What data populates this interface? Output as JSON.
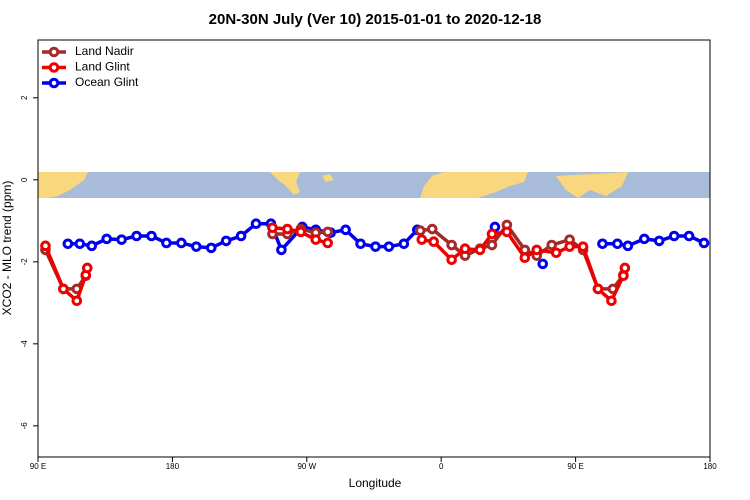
{
  "chart_data": {
    "type": "line",
    "title": "20N-30N July (Ver 10)   2015-01-01 to 2020-12-18",
    "x_label": "Longitude",
    "y_label": "XCO2 - MLO trend (ppm)",
    "xlim": [
      90,
      540
    ],
    "xticks": [
      {
        "value": 90,
        "label": "90 E"
      },
      {
        "value": 180,
        "label": "180"
      },
      {
        "value": 270,
        "label": "90 W"
      },
      {
        "value": 360,
        "label": "0"
      },
      {
        "value": 450,
        "label": "90 E"
      },
      {
        "value": 540,
        "label": "180"
      }
    ],
    "ylim": [
      -6.76,
      3.41
    ],
    "yticks": [
      -6,
      -4,
      -2,
      0,
      2
    ],
    "legend": "top-left",
    "series": [
      {
        "name": "Land Nadir",
        "color": "#a52a2a",
        "x": [
          95,
          107,
          116,
          122,
          200,
          247,
          257,
          266,
          276,
          284,
          320,
          346,
          354,
          367,
          376,
          386,
          394,
          404,
          416,
          424,
          434,
          446,
          455,
          465,
          475,
          482
        ],
        "values": [
          -1.71,
          -2.66,
          -2.66,
          -2.34,
          null,
          -1.32,
          -1.32,
          -1.2,
          -1.29,
          -1.27,
          null,
          -1.24,
          -1.2,
          -1.59,
          -1.85,
          -1.68,
          -1.59,
          -1.1,
          -1.71,
          -1.85,
          -1.59,
          -1.46,
          -1.71,
          -2.66,
          -2.66,
          -2.32
        ]
      },
      {
        "name": "Land Glint",
        "color": "#ee0000",
        "x": [
          95,
          107,
          116,
          122,
          123,
          200,
          247,
          257,
          266,
          276,
          284,
          320,
          347,
          355,
          367,
          376,
          386,
          394,
          404,
          416,
          424,
          437,
          446,
          455,
          465,
          474,
          482,
          483
        ],
        "values": [
          -1.61,
          -2.66,
          -2.95,
          -2.32,
          -2.15,
          null,
          -1.17,
          -1.2,
          -1.27,
          -1.46,
          -1.54,
          null,
          -1.46,
          -1.51,
          -1.95,
          -1.68,
          -1.71,
          -1.32,
          -1.27,
          -1.9,
          -1.71,
          -1.78,
          -1.63,
          -1.63,
          -2.66,
          -2.95,
          -2.34,
          -2.15
        ]
      },
      {
        "name": "Ocean Glint",
        "color": "#0000ee",
        "x": [
          110,
          118,
          126,
          136,
          146,
          156,
          166,
          176,
          186,
          196,
          206,
          216,
          226,
          236,
          246,
          253,
          267,
          276,
          286,
          296,
          306,
          316,
          325,
          335,
          344,
          370,
          396,
          412,
          428,
          450,
          468,
          478,
          485,
          496,
          506,
          516,
          526,
          536
        ],
        "values": [
          -1.56,
          -1.56,
          -1.61,
          -1.44,
          -1.46,
          -1.37,
          -1.37,
          -1.54,
          -1.54,
          -1.63,
          -1.66,
          -1.49,
          -1.37,
          -1.07,
          -1.07,
          -1.71,
          -1.15,
          -1.22,
          -1.29,
          -1.22,
          -1.56,
          -1.63,
          -1.63,
          -1.56,
          -1.22,
          null,
          -1.15,
          null,
          -2.05,
          null,
          -1.56,
          -1.56,
          -1.61,
          -1.44,
          -1.49,
          -1.37,
          -1.37,
          -1.54
        ]
      }
    ]
  }
}
